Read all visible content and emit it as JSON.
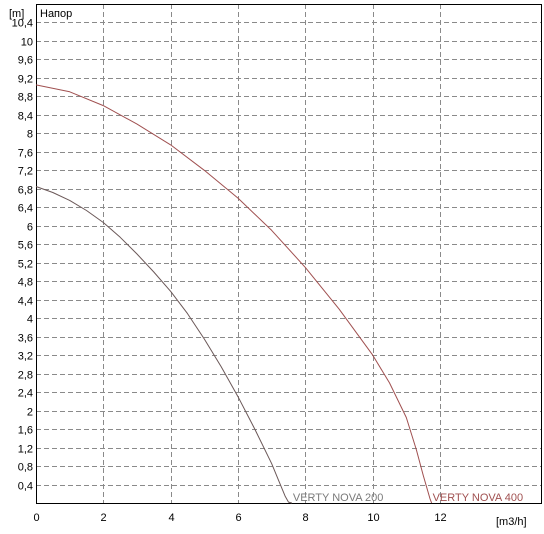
{
  "chart_data": {
    "type": "line",
    "title": "Напор",
    "xlabel": "[m3/h]",
    "ylabel": "[m]",
    "xlim": [
      0,
      15
    ],
    "ylim": [
      0,
      10.8
    ],
    "grid": true,
    "x_ticks": [
      0,
      2,
      4,
      6,
      8,
      10,
      12
    ],
    "x_tick_labels": [
      "0",
      "2",
      "4",
      "6",
      "8",
      "10",
      "12"
    ],
    "y_ticks": [
      0.4,
      0.8,
      1.2,
      1.6,
      2,
      2.4,
      2.8,
      3.2,
      3.6,
      4,
      4.4,
      4.8,
      5.2,
      5.6,
      6,
      6.4,
      6.8,
      7.2,
      7.6,
      8,
      8.4,
      8.8,
      9.2,
      9.6,
      10,
      10.4
    ],
    "y_tick_labels": [
      "0,4",
      "0,8",
      "1,2",
      "1,6",
      "2",
      "2,4",
      "2,8",
      "3,2",
      "3,6",
      "4",
      "4,4",
      "4,8",
      "5,2",
      "5,6",
      "6",
      "6,4",
      "6,8",
      "7,2",
      "7,6",
      "8",
      "8,4",
      "8,8",
      "9,2",
      "9,6",
      "10",
      "10,4"
    ],
    "series": [
      {
        "name": "VERTY NOVA 200",
        "color": "#6b5858",
        "x": [
          0,
          0.5,
          1,
          1.5,
          2,
          2.5,
          3,
          3.5,
          4,
          4.5,
          5,
          5.5,
          6,
          6.5,
          7,
          7.2,
          7.4,
          7.5,
          7.6
        ],
        "y": [
          6.85,
          6.72,
          6.55,
          6.33,
          6.07,
          5.75,
          5.39,
          5.0,
          4.58,
          4.1,
          3.55,
          2.95,
          2.3,
          1.6,
          0.85,
          0.5,
          0.15,
          0.02,
          0.0
        ]
      },
      {
        "name": "VERTY NOVA 400",
        "color": "#a05050",
        "x": [
          0,
          1,
          2,
          3,
          4,
          5,
          6,
          7,
          8,
          9,
          10,
          10.5,
          11,
          11.3,
          11.5,
          11.7,
          11.75
        ],
        "y": [
          9.05,
          8.9,
          8.6,
          8.2,
          7.75,
          7.2,
          6.6,
          5.9,
          5.1,
          4.2,
          3.2,
          2.6,
          1.85,
          1.15,
          0.6,
          0.1,
          0.0
        ]
      }
    ]
  }
}
